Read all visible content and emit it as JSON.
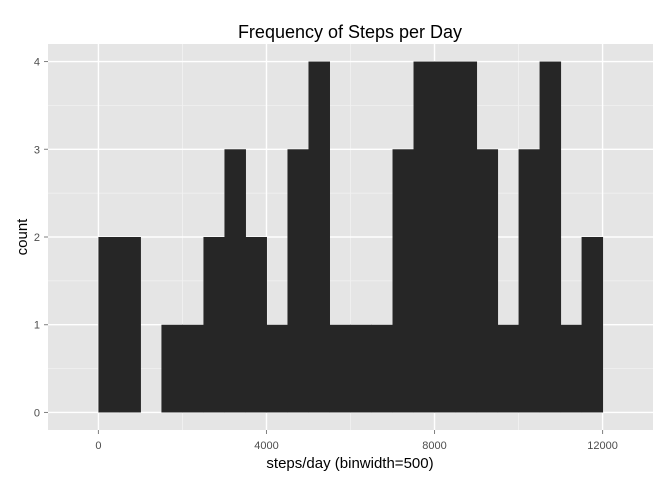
{
  "colors": {
    "panel": "#e5e5e5",
    "grid_major": "#ffffff",
    "grid_minor": "#f2f2f2",
    "bar": "#262626",
    "tick_text": "#4d4d4d"
  },
  "chart_data": {
    "type": "bar",
    "title": "Frequency of Steps per Day",
    "xlabel": "steps/day (binwidth=500)",
    "ylabel": "count",
    "binwidth": 500,
    "xlim": [
      -1200,
      13200
    ],
    "ylim": [
      -0.2,
      4.2
    ],
    "x_ticks": [
      0,
      4000,
      8000,
      12000
    ],
    "x_tick_labels": [
      "0",
      "4000",
      "8000",
      "12000"
    ],
    "y_ticks": [
      0,
      1,
      2,
      3,
      4
    ],
    "y_tick_labels": [
      "0",
      "1",
      "2",
      "3",
      "4"
    ],
    "grid": true,
    "bin_starts": [
      0,
      500,
      1000,
      1500,
      2000,
      2500,
      3000,
      3500,
      4000,
      4500,
      5000,
      5500,
      6000,
      6500,
      7000,
      7500,
      8000,
      8500,
      9000,
      9500,
      10000,
      10500,
      11000,
      11500
    ],
    "values": [
      2,
      2,
      0,
      1,
      1,
      2,
      3,
      2,
      1,
      3,
      4,
      1,
      1,
      1,
      3,
      4,
      4,
      4,
      3,
      1,
      3,
      4,
      1,
      2
    ]
  }
}
